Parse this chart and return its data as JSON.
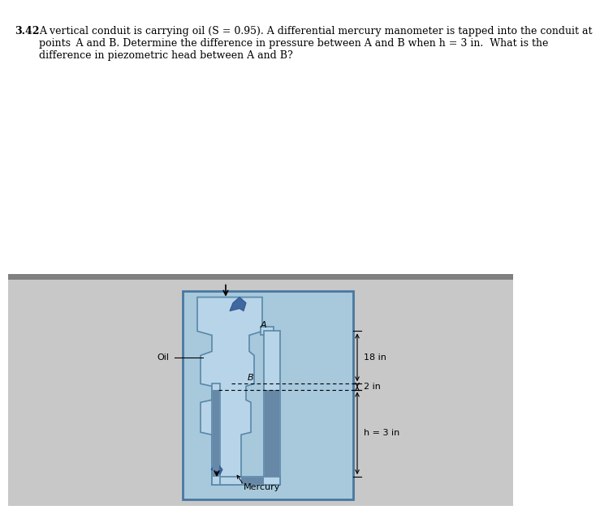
{
  "bg_color_diagram": "#a8c8dc",
  "bg_color_bottom": "#c8c8c8",
  "pipe_fill": "#b8d4e8",
  "pipe_fill_dark": "#90b8d0",
  "pipe_edge": "#5888a8",
  "mercury_fill": "#6888a8",
  "label_oil": "Oil",
  "label_A": "A",
  "label_B": "B",
  "label_18in": "18 in",
  "label_2in": "2 in",
  "label_h": "h = 3 in",
  "label_mercury": "Mercury",
  "divider_color": "#808080",
  "text_color": "#000000",
  "line1": "3.42  A vertical conduit is carrying oil (S = 0.95). A differential mercury manometer is tapped into the conduit at",
  "line2": "       points A and B. Determine the difference in pressure between A and B when h = 3 in.  What is the",
  "line3": "       difference in piezometric head between A and B?"
}
